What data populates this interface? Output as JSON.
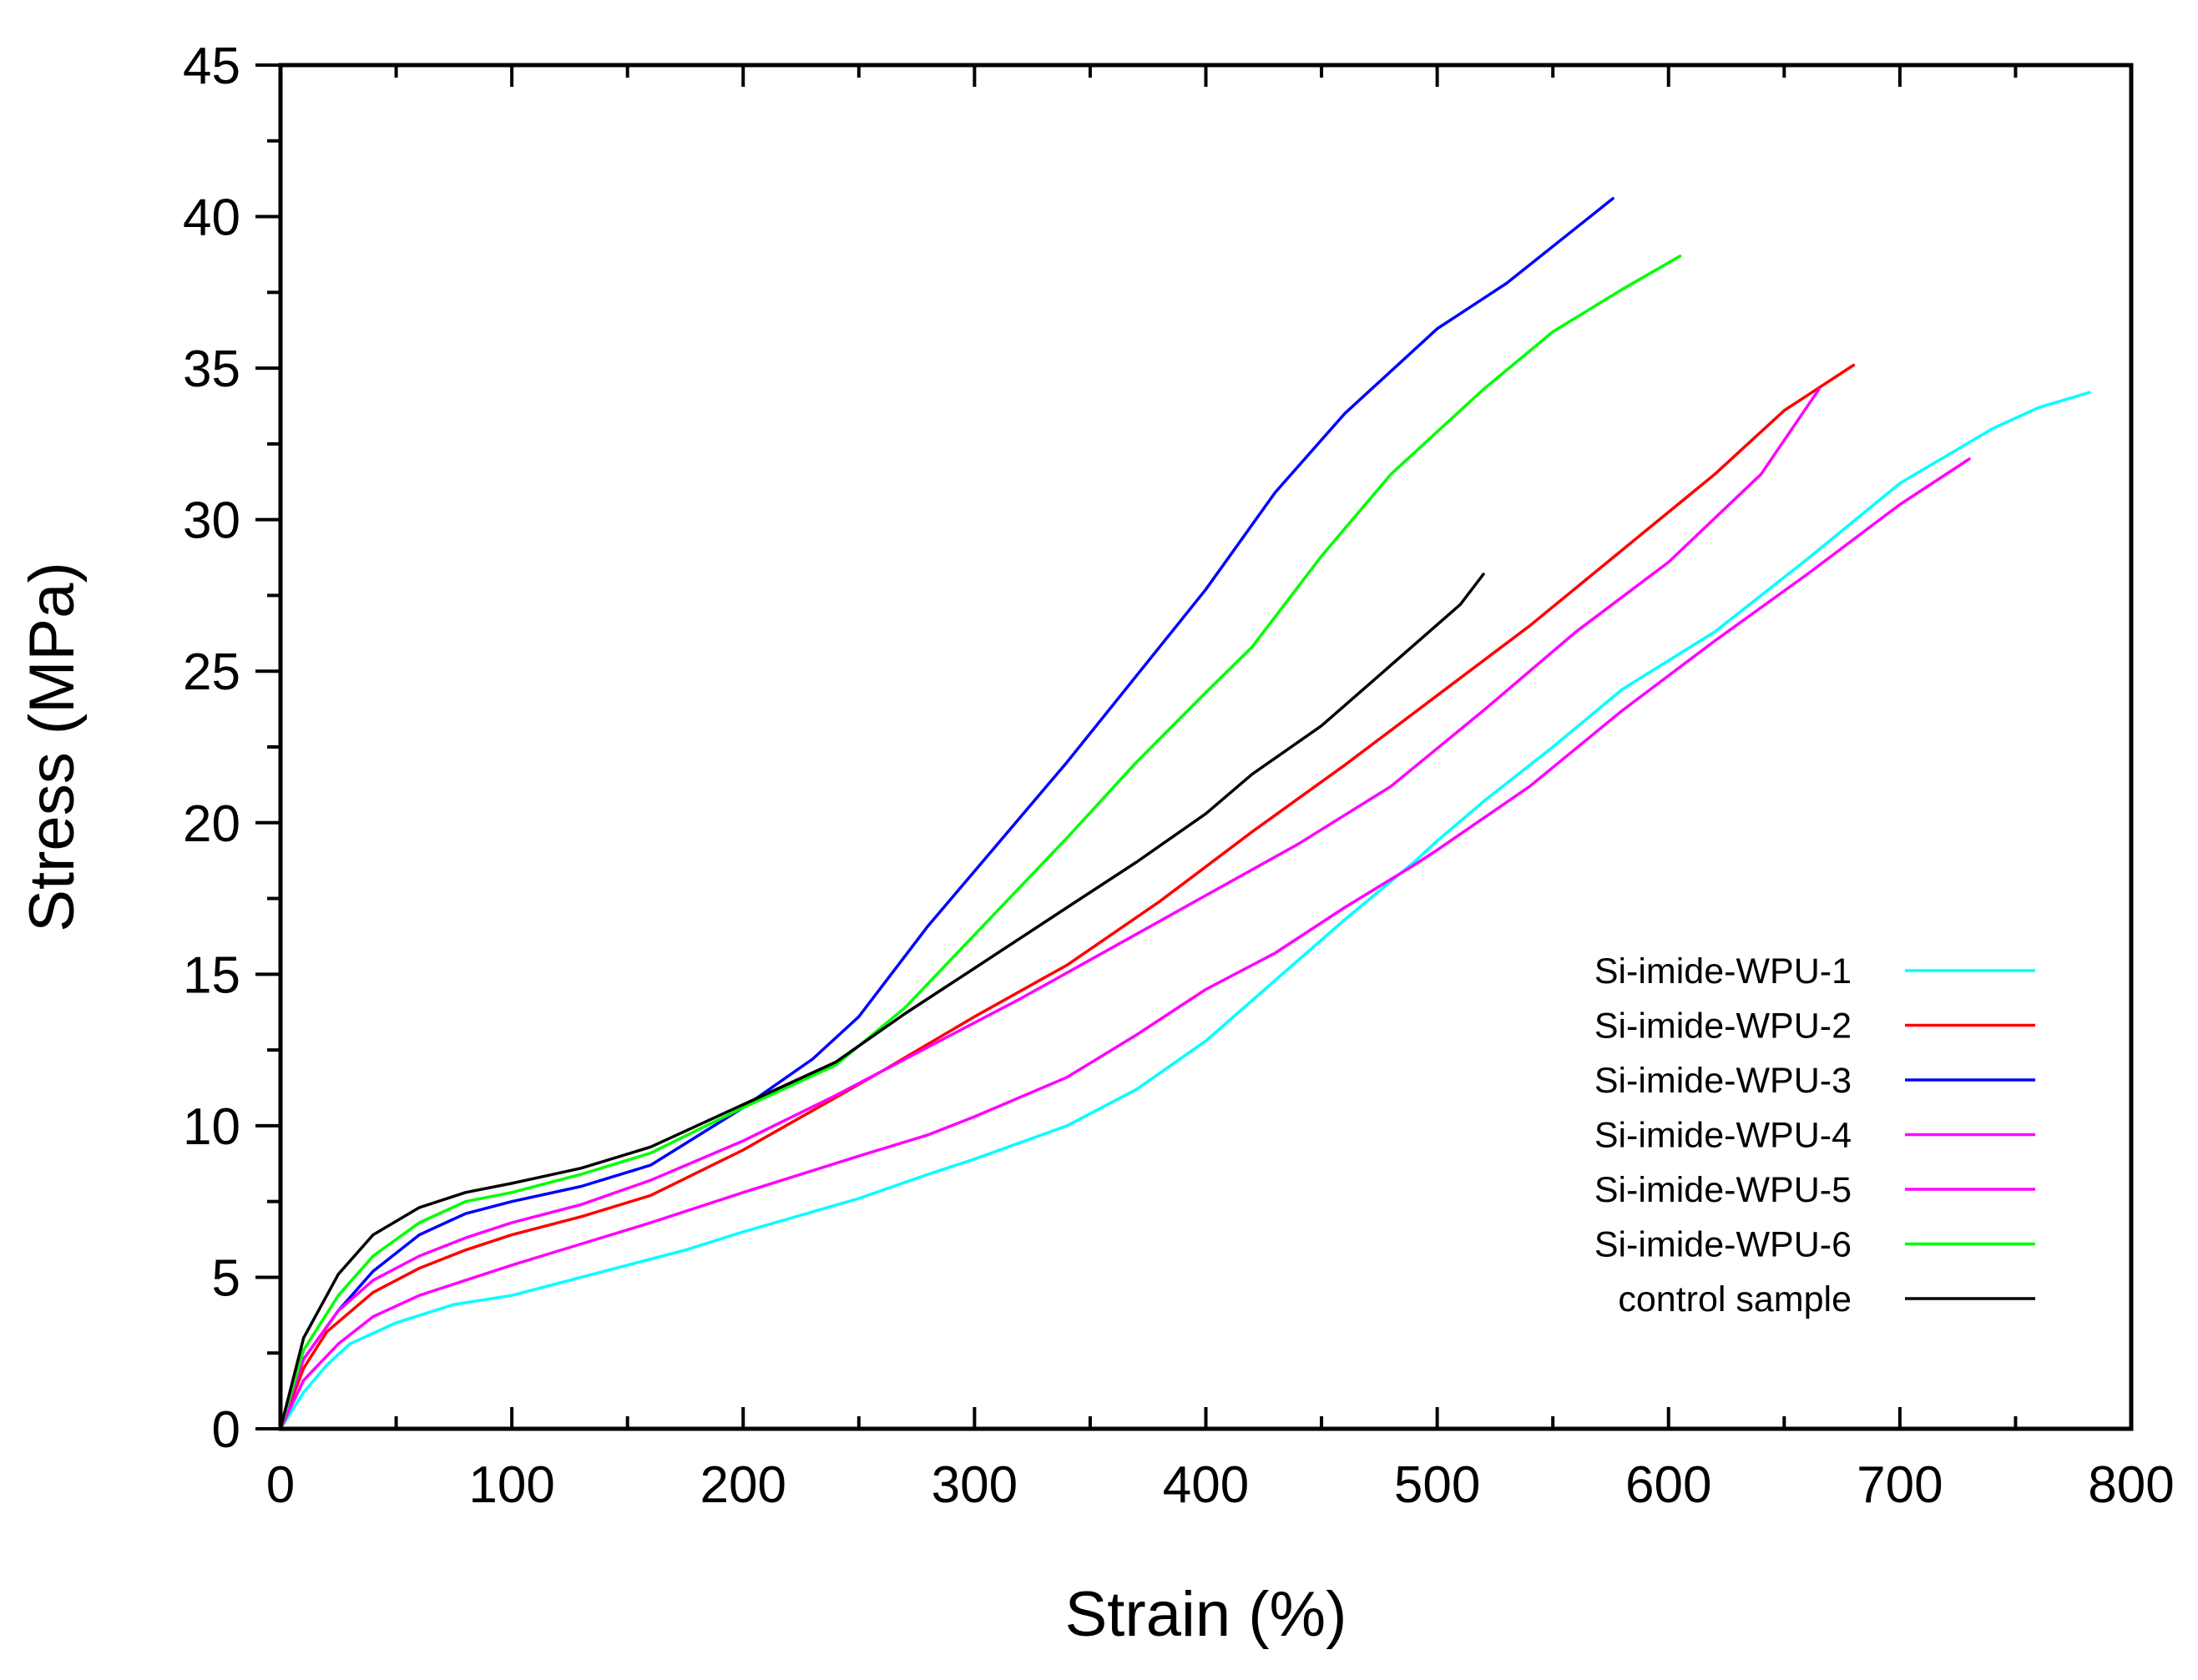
{
  "chart_data": {
    "type": "line",
    "title": "",
    "xlabel": "Strain (%)",
    "ylabel": "Stress (MPa)",
    "xlim": [
      0,
      800
    ],
    "ylim": [
      0,
      45
    ],
    "x_ticks": [
      0,
      100,
      200,
      300,
      400,
      500,
      600,
      700,
      800
    ],
    "y_ticks": [
      0,
      5,
      10,
      15,
      20,
      25,
      30,
      35,
      40,
      45
    ],
    "x_tick_labels": [
      "0",
      "100",
      "200",
      "300",
      "400",
      "500",
      "600",
      "700",
      "800"
    ],
    "y_tick_labels": [
      "0",
      "5",
      "10",
      "15",
      "20",
      "25",
      "30",
      "35",
      "40",
      "45"
    ],
    "grid": false,
    "legend_position": "lower-right",
    "series": [
      {
        "name": "Si-imide-WPU-1",
        "color": "#00ffff",
        "points": [
          [
            0,
            0
          ],
          [
            10,
            1.2
          ],
          [
            20,
            2.1
          ],
          [
            30,
            2.8
          ],
          [
            50,
            3.5
          ],
          [
            75,
            4.1
          ],
          [
            100,
            4.4
          ],
          [
            125,
            4.9
          ],
          [
            150,
            5.4
          ],
          [
            175,
            5.9
          ],
          [
            200,
            6.5
          ],
          [
            250,
            7.6
          ],
          [
            280,
            8.4
          ],
          [
            300,
            8.9
          ],
          [
            340,
            10.0
          ],
          [
            370,
            11.2
          ],
          [
            400,
            12.8
          ],
          [
            430,
            14.8
          ],
          [
            460,
            16.8
          ],
          [
            490,
            18.7
          ],
          [
            500,
            19.4
          ],
          [
            520,
            20.7
          ],
          [
            550,
            22.5
          ],
          [
            580,
            24.4
          ],
          [
            620,
            26.3
          ],
          [
            660,
            28.7
          ],
          [
            700,
            31.2
          ],
          [
            740,
            33.0
          ],
          [
            760,
            33.7
          ],
          [
            782,
            34.2
          ]
        ]
      },
      {
        "name": "Si-imide-WPU-2",
        "color": "#ff0000",
        "points": [
          [
            0,
            0
          ],
          [
            10,
            2.0
          ],
          [
            20,
            3.2
          ],
          [
            40,
            4.5
          ],
          [
            60,
            5.3
          ],
          [
            80,
            5.9
          ],
          [
            100,
            6.4
          ],
          [
            130,
            7.0
          ],
          [
            160,
            7.7
          ],
          [
            200,
            9.2
          ],
          [
            230,
            10.5
          ],
          [
            260,
            11.8
          ],
          [
            300,
            13.6
          ],
          [
            340,
            15.3
          ],
          [
            380,
            17.4
          ],
          [
            420,
            19.7
          ],
          [
            460,
            21.9
          ],
          [
            500,
            24.2
          ],
          [
            540,
            26.5
          ],
          [
            580,
            29.0
          ],
          [
            620,
            31.5
          ],
          [
            650,
            33.6
          ],
          [
            680,
            35.1
          ]
        ]
      },
      {
        "name": "Si-imide-WPU-3",
        "color": "#0000ff",
        "points": [
          [
            0,
            0
          ],
          [
            10,
            2.3
          ],
          [
            25,
            3.9
          ],
          [
            40,
            5.2
          ],
          [
            60,
            6.4
          ],
          [
            80,
            7.1
          ],
          [
            100,
            7.5
          ],
          [
            130,
            8.0
          ],
          [
            160,
            8.7
          ],
          [
            200,
            10.6
          ],
          [
            230,
            12.2
          ],
          [
            250,
            13.6
          ],
          [
            280,
            16.6
          ],
          [
            300,
            18.4
          ],
          [
            340,
            22.0
          ],
          [
            380,
            25.8
          ],
          [
            400,
            27.7
          ],
          [
            430,
            30.9
          ],
          [
            460,
            33.5
          ],
          [
            500,
            36.3
          ],
          [
            530,
            37.8
          ],
          [
            576,
            40.6
          ]
        ]
      },
      {
        "name": "Si-imide-WPU-4",
        "color": "#ff00ff",
        "points": [
          [
            0,
            0
          ],
          [
            10,
            1.6
          ],
          [
            25,
            2.8
          ],
          [
            40,
            3.7
          ],
          [
            60,
            4.4
          ],
          [
            80,
            4.9
          ],
          [
            100,
            5.4
          ],
          [
            130,
            6.1
          ],
          [
            160,
            6.8
          ],
          [
            200,
            7.8
          ],
          [
            250,
            9.0
          ],
          [
            280,
            9.7
          ],
          [
            300,
            10.3
          ],
          [
            340,
            11.6
          ],
          [
            370,
            13.0
          ],
          [
            400,
            14.5
          ],
          [
            430,
            15.7
          ],
          [
            460,
            17.2
          ],
          [
            490,
            18.6
          ],
          [
            500,
            19.1
          ],
          [
            540,
            21.2
          ],
          [
            580,
            23.7
          ],
          [
            620,
            26.0
          ],
          [
            660,
            28.2
          ],
          [
            700,
            30.5
          ],
          [
            730,
            32.0
          ]
        ]
      },
      {
        "name": "Si-imide-WPU-5",
        "color": "#ff00ff",
        "points": [
          [
            0,
            0
          ],
          [
            10,
            2.3
          ],
          [
            25,
            3.9
          ],
          [
            40,
            4.9
          ],
          [
            60,
            5.7
          ],
          [
            80,
            6.3
          ],
          [
            100,
            6.8
          ],
          [
            130,
            7.4
          ],
          [
            160,
            8.2
          ],
          [
            200,
            9.5
          ],
          [
            240,
            11.0
          ],
          [
            280,
            12.6
          ],
          [
            320,
            14.2
          ],
          [
            360,
            15.9
          ],
          [
            400,
            17.6
          ],
          [
            440,
            19.3
          ],
          [
            480,
            21.2
          ],
          [
            520,
            23.7
          ],
          [
            560,
            26.3
          ],
          [
            600,
            28.6
          ],
          [
            640,
            31.5
          ],
          [
            665,
            34.3
          ]
        ]
      },
      {
        "name": "Si-imide-WPU-6",
        "color": "#00ff00",
        "points": [
          [
            0,
            0
          ],
          [
            10,
            2.6
          ],
          [
            25,
            4.4
          ],
          [
            40,
            5.7
          ],
          [
            60,
            6.8
          ],
          [
            80,
            7.5
          ],
          [
            100,
            7.8
          ],
          [
            130,
            8.4
          ],
          [
            160,
            9.1
          ],
          [
            200,
            10.6
          ],
          [
            240,
            12.0
          ],
          [
            270,
            13.9
          ],
          [
            300,
            16.3
          ],
          [
            340,
            19.5
          ],
          [
            370,
            22.0
          ],
          [
            400,
            24.3
          ],
          [
            420,
            25.8
          ],
          [
            450,
            28.8
          ],
          [
            480,
            31.5
          ],
          [
            520,
            34.3
          ],
          [
            550,
            36.2
          ],
          [
            580,
            37.6
          ],
          [
            605,
            38.7
          ]
        ]
      },
      {
        "name": "control sample",
        "color": "#000000",
        "points": [
          [
            0,
            0
          ],
          [
            10,
            3.0
          ],
          [
            25,
            5.1
          ],
          [
            40,
            6.4
          ],
          [
            60,
            7.3
          ],
          [
            80,
            7.8
          ],
          [
            100,
            8.1
          ],
          [
            130,
            8.6
          ],
          [
            160,
            9.3
          ],
          [
            200,
            10.7
          ],
          [
            240,
            12.1
          ],
          [
            270,
            13.7
          ],
          [
            300,
            15.2
          ],
          [
            340,
            17.2
          ],
          [
            370,
            18.7
          ],
          [
            400,
            20.3
          ],
          [
            420,
            21.6
          ],
          [
            450,
            23.2
          ],
          [
            480,
            25.2
          ],
          [
            510,
            27.2
          ],
          [
            520,
            28.2
          ]
        ]
      }
    ]
  }
}
